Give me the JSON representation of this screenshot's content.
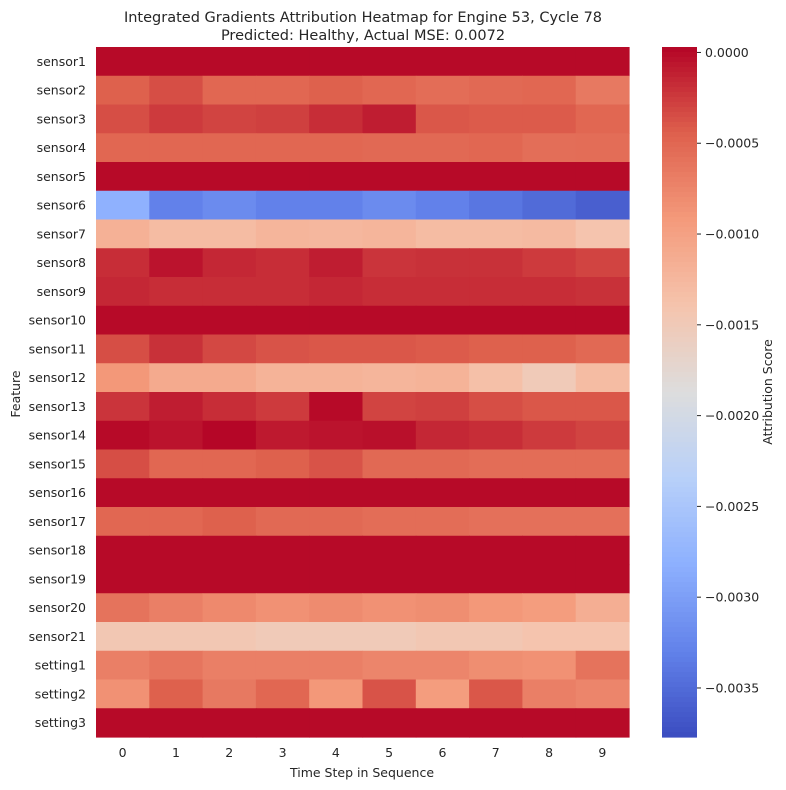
{
  "chart_data": {
    "type": "heatmap",
    "title_line1": "Integrated Gradients Attribution Heatmap for Engine 53, Cycle 78",
    "title_line2": "Predicted: Healthy, Actual MSE: 0.0072",
    "xlabel": "Time Step in Sequence",
    "ylabel": "Feature",
    "colorbar_label": "Attribution Score",
    "colormap": "coolwarm",
    "vmin": -0.00377,
    "vmax": 3e-05,
    "colorbar_ticks": [
      "0.0000",
      "−0.0005",
      "−0.0010",
      "−0.0015",
      "−0.0020",
      "−0.0025",
      "−0.0030",
      "−0.0035"
    ],
    "colorbar_tick_values": [
      0.0,
      -0.0005,
      -0.001,
      -0.0015,
      -0.002,
      -0.0025,
      -0.003,
      -0.0035
    ],
    "x_ticks": [
      "0",
      "1",
      "2",
      "3",
      "4",
      "5",
      "6",
      "7",
      "8",
      "9"
    ],
    "features": [
      "sensor1",
      "sensor2",
      "sensor3",
      "sensor4",
      "sensor5",
      "sensor6",
      "sensor7",
      "sensor8",
      "sensor9",
      "sensor10",
      "sensor11",
      "sensor12",
      "sensor13",
      "sensor14",
      "sensor15",
      "sensor16",
      "sensor17",
      "sensor18",
      "sensor19",
      "sensor20",
      "sensor21",
      "setting1",
      "setting2",
      "setting3"
    ],
    "values": [
      [
        0.0,
        0.0,
        0.0,
        0.0,
        0.0,
        0.0,
        0.0,
        0.0,
        0.0,
        0.0
      ],
      [
        -0.00045,
        -0.00035,
        -0.0005,
        -0.0005,
        -0.00045,
        -0.0005,
        -0.00055,
        -0.00052,
        -0.0005,
        -0.00065
      ],
      [
        -0.00035,
        -0.00025,
        -0.0003,
        -0.00028,
        -0.00018,
        -0.0001,
        -0.0004,
        -0.00042,
        -0.00042,
        -0.0005
      ],
      [
        -0.0005,
        -0.0005,
        -0.0005,
        -0.0005,
        -0.0005,
        -0.00052,
        -0.00052,
        -0.0005,
        -0.00056,
        -0.00055
      ],
      [
        0.0,
        0.0,
        0.0,
        0.0,
        0.0,
        0.0,
        0.0,
        0.0,
        0.0,
        0.0
      ],
      [
        -0.0028,
        -0.0033,
        -0.0032,
        -0.0033,
        -0.0033,
        -0.0032,
        -0.0033,
        -0.0034,
        -0.0035,
        -0.0036
      ],
      [
        -0.00118,
        -0.0013,
        -0.0013,
        -0.00122,
        -0.00125,
        -0.00122,
        -0.0013,
        -0.0013,
        -0.00128,
        -0.0014
      ],
      [
        -0.00018,
        -5e-05,
        -0.00015,
        -0.00018,
        -0.0001,
        -0.00022,
        -0.0002,
        -0.0002,
        -0.00025,
        -0.0003
      ],
      [
        -0.00015,
        -0.00018,
        -0.00018,
        -0.00018,
        -0.00015,
        -0.00018,
        -0.00018,
        -0.00018,
        -0.00018,
        -0.0002
      ],
      [
        0.0,
        0.0,
        0.0,
        0.0,
        0.0,
        0.0,
        0.0,
        0.0,
        0.0,
        0.0
      ],
      [
        -0.00035,
        -0.0002,
        -0.00032,
        -0.00038,
        -0.0004,
        -0.0004,
        -0.00042,
        -0.00045,
        -0.00045,
        -0.00052
      ],
      [
        -0.0009,
        -0.0011,
        -0.0011,
        -0.0012,
        -0.0012,
        -0.00122,
        -0.0012,
        -0.00135,
        -0.0015,
        -0.0013
      ],
      [
        -0.00022,
        -0.0001,
        -0.00018,
        -0.00025,
        0.0,
        -0.0003,
        -0.00028,
        -0.00035,
        -0.0004,
        -0.0004
      ],
      [
        0.0,
        -5e-05,
        2e-05,
        -8e-05,
        -5e-05,
        -3e-05,
        -0.00015,
        -0.00018,
        -0.00025,
        -0.0003
      ],
      [
        -0.00035,
        -0.0005,
        -0.0005,
        -0.00045,
        -0.00038,
        -0.00052,
        -0.00052,
        -0.00055,
        -0.00055,
        -0.00055
      ],
      [
        0.0,
        0.0,
        0.0,
        0.0,
        0.0,
        0.0,
        0.0,
        0.0,
        0.0,
        0.0
      ],
      [
        -0.0005,
        -0.0005,
        -0.00045,
        -0.00052,
        -0.00052,
        -0.00055,
        -0.00055,
        -0.00058,
        -0.00058,
        -0.00058
      ],
      [
        0.0,
        0.0,
        0.0,
        0.0,
        0.0,
        0.0,
        0.0,
        0.0,
        0.0,
        0.0
      ],
      [
        0.0,
        0.0,
        0.0,
        0.0,
        0.0,
        0.0,
        0.0,
        0.0,
        0.0,
        0.0
      ],
      [
        -0.0006,
        -0.0007,
        -0.00078,
        -0.00085,
        -0.0008,
        -0.00085,
        -0.00082,
        -0.0009,
        -0.00095,
        -0.00115
      ],
      [
        -0.00145,
        -0.00145,
        -0.00145,
        -0.0015,
        -0.0015,
        -0.0015,
        -0.00145,
        -0.00145,
        -0.0014,
        -0.0014
      ],
      [
        -0.0007,
        -0.00062,
        -0.0007,
        -0.0007,
        -0.0007,
        -0.00075,
        -0.00075,
        -0.00082,
        -0.00085,
        -0.0006
      ],
      [
        -0.00085,
        -0.00045,
        -0.00065,
        -0.0005,
        -0.0009,
        -0.00038,
        -0.00095,
        -0.0004,
        -0.0007,
        -0.00075
      ],
      [
        0.0,
        0.0,
        0.0,
        0.0,
        0.0,
        0.0,
        0.0,
        0.0,
        0.0,
        0.0
      ]
    ]
  }
}
